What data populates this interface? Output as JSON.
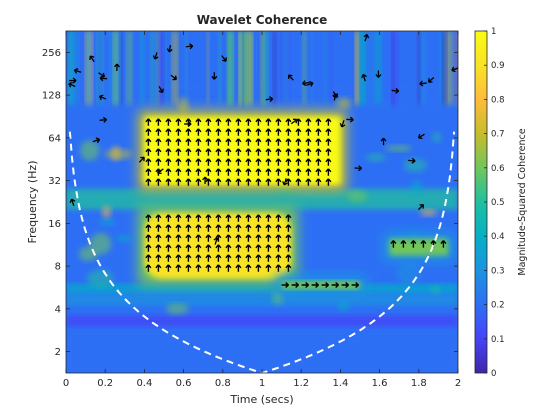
{
  "chart_data": {
    "type": "heatmap",
    "title": "Wavelet Coherence",
    "xlabel": "Time (secs)",
    "ylabel": "Frequency (Hz)",
    "xlim": [
      0,
      2
    ],
    "ylim": [
      1.414,
      362
    ],
    "y_scale": "log2",
    "xticks": [
      0,
      0.2,
      0.4,
      0.6,
      0.8,
      1,
      1.2,
      1.4,
      1.6,
      1.8,
      2
    ],
    "yticks": [
      2,
      4,
      8,
      16,
      32,
      64,
      128,
      256
    ],
    "colorbar": {
      "label": "Magnitude-Squared Coherence",
      "range": [
        0,
        1
      ],
      "ticks": [
        0,
        0.1,
        0.2,
        0.3,
        0.4,
        0.5,
        0.6,
        0.7,
        0.8,
        0.9,
        1
      ],
      "colormap": [
        "#3e26a8",
        "#4743f8",
        "#2d6ff4",
        "#1b93e0",
        "#05b0c6",
        "#20c09e",
        "#71c65b",
        "#c6bd2d",
        "#fdbc3d",
        "#f9e325",
        "#f9fb15"
      ]
    },
    "regions": [
      {
        "t0": 0.4,
        "t1": 1.4,
        "f0": 30,
        "f1": 90,
        "coherence": 0.98
      },
      {
        "t0": 0.4,
        "t1": 1.15,
        "f0": 6.5,
        "f1": 19,
        "coherence": 0.85
      },
      {
        "t0": 1.1,
        "t1": 1.5,
        "f0": 5.5,
        "f1": 6.3,
        "coherence": 0.6
      },
      {
        "t0": 1.65,
        "t1": 1.95,
        "f0": 9.5,
        "f1": 12.5,
        "coherence": 0.55
      }
    ],
    "cone_of_influence": {
      "vertex_time": 1.0,
      "vertex_freq": 1.414,
      "style": "white dashed"
    },
    "phase_arrows": "black arrows indicating relative phase; mostly pointing up in the high-coherence blocks"
  }
}
